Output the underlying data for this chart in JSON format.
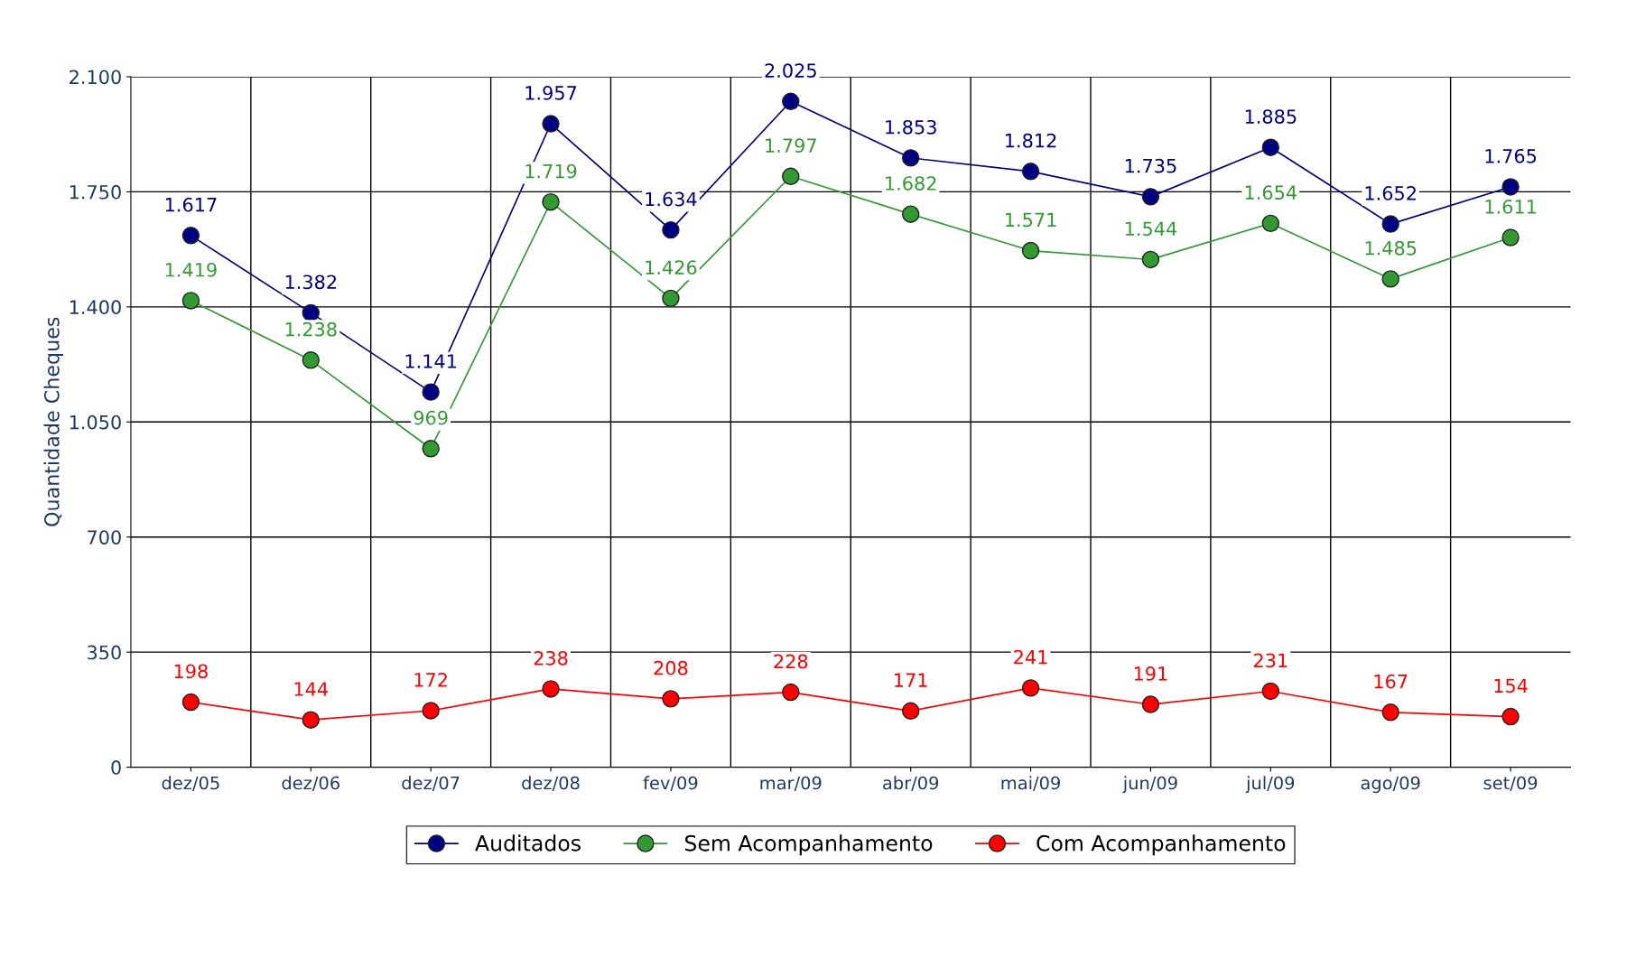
{
  "chart_data": {
    "type": "line",
    "ylabel": "Quantidade Cheques",
    "categories": [
      "dez/05",
      "dez/06",
      "dez/07",
      "dez/08",
      "fev/09",
      "mar/09",
      "abr/09",
      "mai/09",
      "jun/09",
      "jul/09",
      "ago/09",
      "set/09"
    ],
    "series": [
      {
        "name": "Auditados",
        "color": "#000080",
        "values": [
          1617,
          1382,
          1141,
          1957,
          1634,
          2025,
          1853,
          1812,
          1735,
          1885,
          1652,
          1765
        ],
        "value_labels": [
          "1.617",
          "1.382",
          "1.141",
          "1.957",
          "1.634",
          "2.025",
          "1.853",
          "1.812",
          "1.735",
          "1.885",
          "1.652",
          "1.765"
        ]
      },
      {
        "name": "Sem Acompanhamento",
        "color": "#339933",
        "values": [
          1419,
          1238,
          969,
          1719,
          1426,
          1797,
          1682,
          1571,
          1544,
          1654,
          1485,
          1611
        ],
        "value_labels": [
          "1.419",
          "1.238",
          "969",
          "1.719",
          "1.426",
          "1.797",
          "1.682",
          "1.571",
          "1.544",
          "1.654",
          "1.485",
          "1.611"
        ]
      },
      {
        "name": "Com Acompanhamento",
        "color": "#ff0000",
        "values": [
          198,
          144,
          172,
          238,
          208,
          228,
          171,
          241,
          191,
          231,
          167,
          154
        ],
        "value_labels": [
          "198",
          "144",
          "172",
          "238",
          "208",
          "228",
          "171",
          "241",
          "191",
          "231",
          "167",
          "154"
        ]
      }
    ],
    "ylim": [
      0,
      2100
    ],
    "yticks": [
      0,
      350,
      700,
      {
        "value": 1050,
        "label": "1.050"
      },
      {
        "value": 1400,
        "label": "1.400"
      },
      {
        "value": 1750,
        "label": "1.750"
      },
      {
        "value": 2100,
        "label": "2.100"
      }
    ],
    "grid": true,
    "legend": "bottom",
    "marker": "circle",
    "line_style": "solid"
  }
}
